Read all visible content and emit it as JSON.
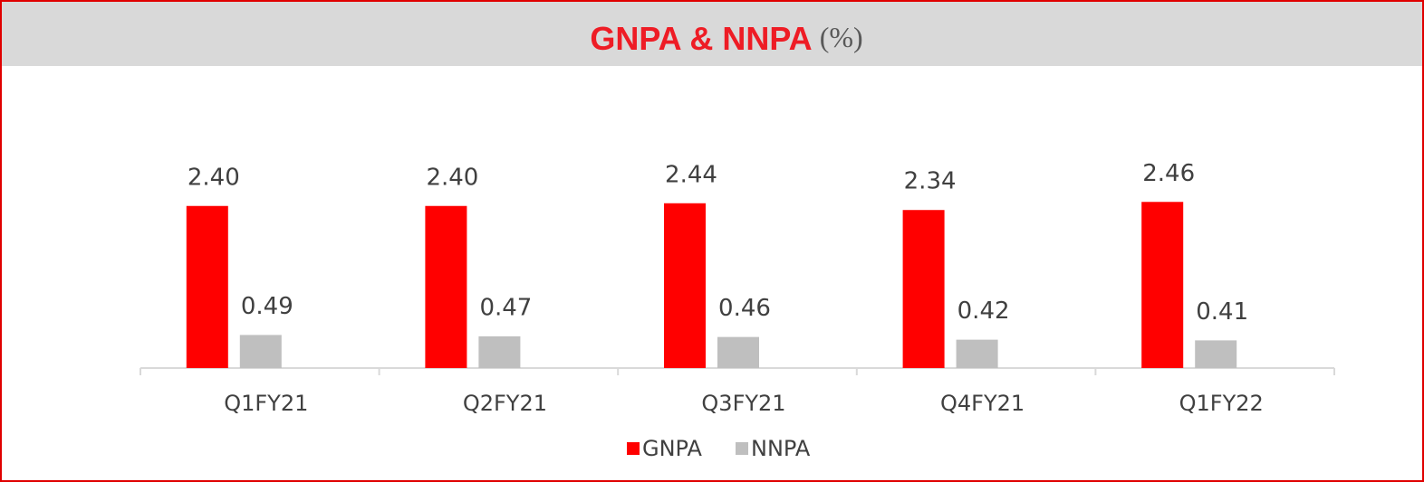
{
  "chart_data": {
    "type": "bar",
    "title": "GNPA & NNPA",
    "title_suffix": "(%)",
    "categories": [
      "Q1FY21",
      "Q2FY21",
      "Q3FY21",
      "Q4FY21",
      "Q1FY22"
    ],
    "series": [
      {
        "name": "GNPA",
        "color": "#ff0000",
        "values": [
          2.4,
          2.4,
          2.44,
          2.34,
          2.46
        ],
        "value_labels": [
          "2.40",
          "2.40",
          "2.44",
          "2.34",
          "2.46"
        ]
      },
      {
        "name": "NNPA",
        "color": "#bfbfbf",
        "values": [
          0.49,
          0.47,
          0.46,
          0.42,
          0.41
        ],
        "value_labels": [
          "0.49",
          "0.47",
          "0.46",
          "0.42",
          "0.41"
        ]
      }
    ],
    "ylim": [
      0,
      3.2
    ],
    "legend": "bottom"
  }
}
